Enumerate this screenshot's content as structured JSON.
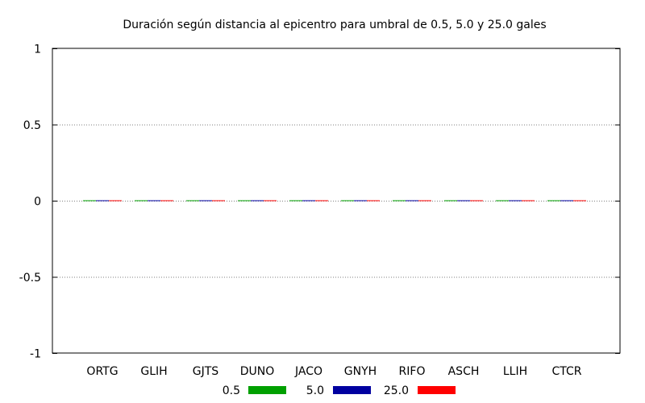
{
  "chart_data": {
    "type": "bar",
    "title": "Duración según distancia al epicentro para umbral de 0.5, 5.0 y 25.0 gales",
    "xlabel": "",
    "ylabel": "",
    "categories": [
      "ORTG",
      "GLIH",
      "GJTS",
      "DUNO",
      "JACO",
      "GNYH",
      "RIFO",
      "ASCH",
      "LLIH",
      "CTCR"
    ],
    "series": [
      {
        "name": "0.5",
        "color": "#00a000",
        "values": [
          0,
          0,
          0,
          0,
          0,
          0,
          0,
          0,
          0,
          0
        ]
      },
      {
        "name": "5.0",
        "color": "#0000a0",
        "values": [
          0,
          0,
          0,
          0,
          0,
          0,
          0,
          0,
          0,
          0
        ]
      },
      {
        "name": "25.0",
        "color": "#ff0000",
        "values": [
          0,
          0,
          0,
          0,
          0,
          0,
          0,
          0,
          0,
          0
        ]
      }
    ],
    "ylim": [
      -1,
      1
    ],
    "yticks": [
      1,
      0.5,
      0,
      -0.5,
      -1
    ],
    "ytick_labels": [
      "1",
      "0.5",
      "0",
      "-0.5",
      "-1"
    ],
    "grid": "horizontal dotted",
    "legend_position": "bottom-center"
  }
}
